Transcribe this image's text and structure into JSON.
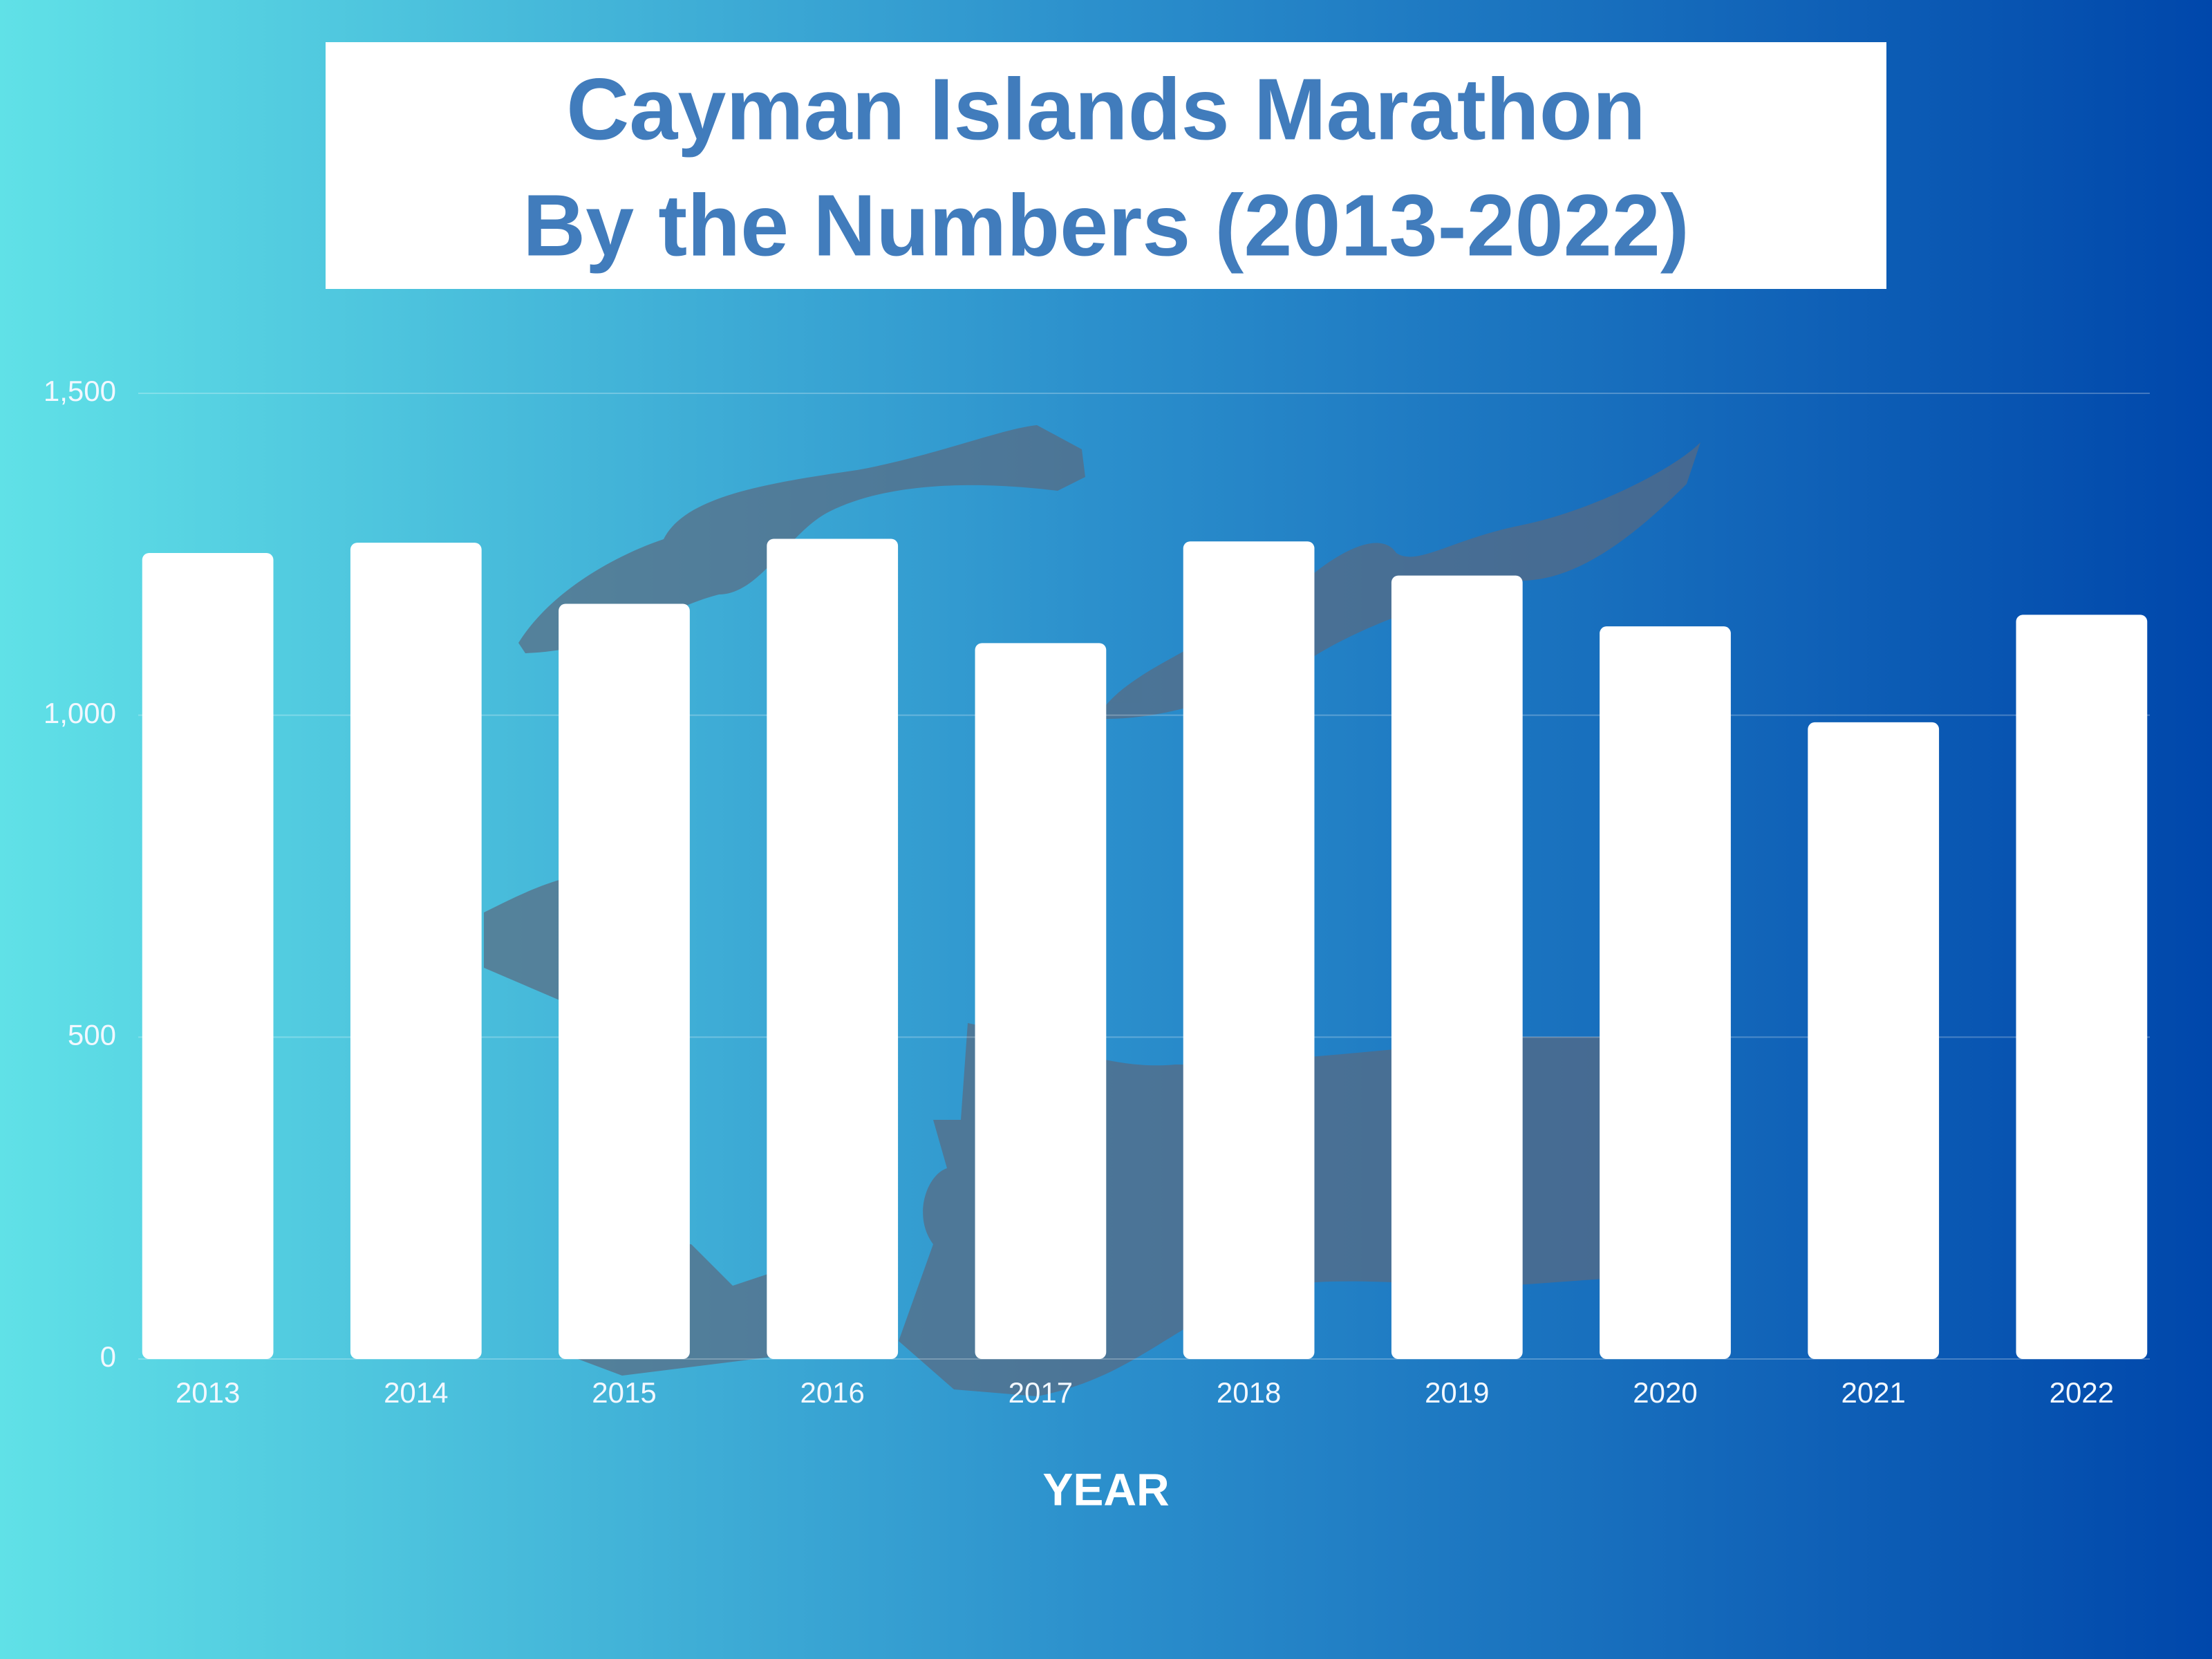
{
  "chart_data": {
    "type": "bar",
    "title": [
      "Cayman Islands Marathon",
      "By the Numbers (2013-2022)"
    ],
    "x_label": "YEAR",
    "categories": [
      "2013",
      "2014",
      "2015",
      "2016",
      "2017",
      "2018",
      "2019",
      "2020",
      "2021",
      "2022"
    ],
    "values": [
      1252,
      1268,
      1173,
      1274,
      1112,
      1270,
      1217,
      1138,
      989,
      1156
    ],
    "color": "#ffffff",
    "ylim": [
      0,
      1500
    ],
    "yticks": [
      0,
      500,
      {
        "value": 1000,
        "label": "1,000"
      },
      {
        "value": 1500,
        "label": "1,500"
      }
    ],
    "grid": true
  }
}
